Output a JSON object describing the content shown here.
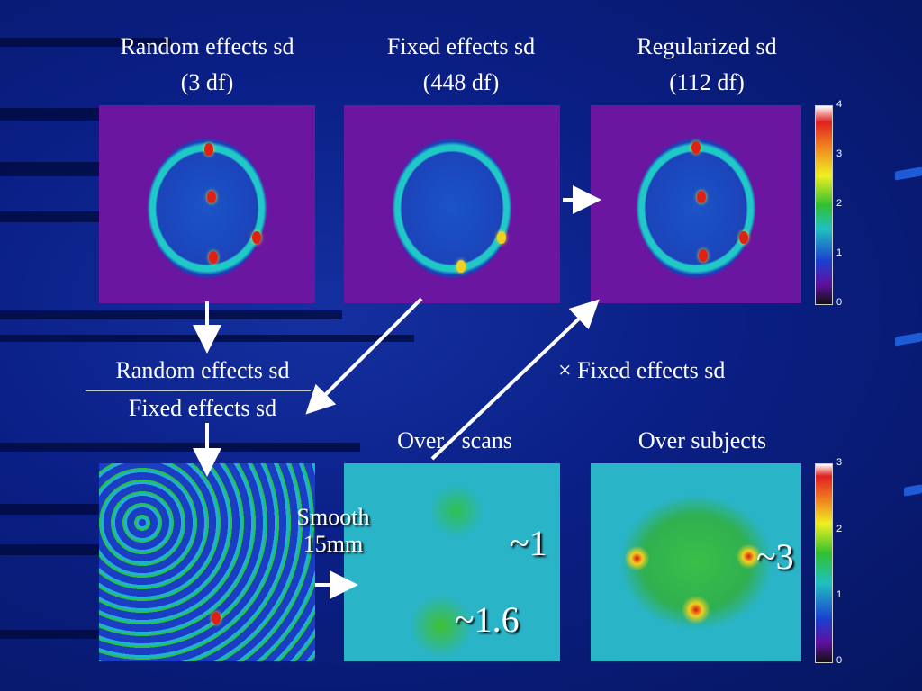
{
  "titles": {
    "random_line1": "Random effects sd",
    "random_line2": "(3 df)",
    "fixed_line1": "Fixed effects sd",
    "fixed_line2": "(448 df)",
    "reg_line1": "Regularized sd",
    "reg_line2": "(112 df)"
  },
  "ratio": {
    "numerator": "Random effects sd",
    "denominator": "Fixed effects sd"
  },
  "times_fixed": "× Fixed effects sd",
  "over_scans": "Over   scans",
  "over_subjects": "Over subjects",
  "smooth": {
    "line1": "Smooth",
    "line2": "15mm"
  },
  "annotations": {
    "a1": "~1",
    "a16": "~1.6",
    "a3": "~3"
  },
  "colorbar_top": {
    "ticks": [
      "4",
      "3",
      "2",
      "1",
      "0"
    ]
  },
  "colorbar_bottom": {
    "ticks": [
      "3",
      "2",
      "1",
      "0"
    ]
  }
}
